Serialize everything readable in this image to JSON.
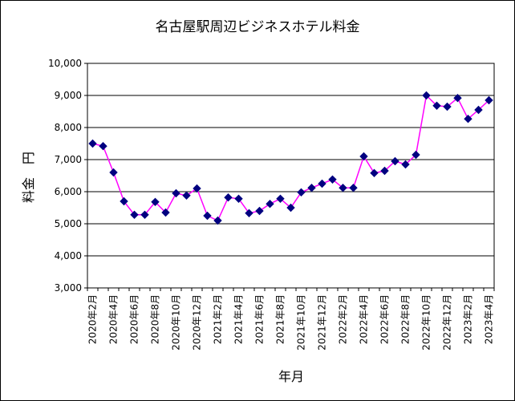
{
  "chart_data": {
    "type": "line",
    "title": "名古屋駅周辺ビジネスホテル料金",
    "xlabel": "年月",
    "ylabel": "料金　円",
    "ylim": [
      3000,
      10000
    ],
    "yticks": [
      "3,000",
      "4,000",
      "5,000",
      "6,000",
      "7,000",
      "8,000",
      "9,000",
      "10,000"
    ],
    "grid": true,
    "legend": "none",
    "x_tick_labels": [
      "2020年2月",
      "2020年4月",
      "2020年6月",
      "2020年8月",
      "2020年10月",
      "2020年12月",
      "2021年2月",
      "2021年4月",
      "2021年6月",
      "2021年8月",
      "2021年10月",
      "2021年12月",
      "2022年2月",
      "2022年4月",
      "2022年6月",
      "2022年8月",
      "2022年10月",
      "2022年12月",
      "2023年2月",
      "2023年4月"
    ],
    "x": [
      "2020年2月",
      "2020年3月",
      "2020年4月",
      "2020年5月",
      "2020年6月",
      "2020年7月",
      "2020年8月",
      "2020年9月",
      "2020年10月",
      "2020年11月",
      "2020年12月",
      "2021年1月",
      "2021年2月",
      "2021年3月",
      "2021年4月",
      "2021年5月",
      "2021年6月",
      "2021年7月",
      "2021年8月",
      "2021年9月",
      "2021年10月",
      "2021年11月",
      "2021年12月",
      "2022年1月",
      "2022年2月",
      "2022年3月",
      "2022年4月",
      "2022年5月",
      "2022年6月",
      "2022年7月",
      "2022年8月",
      "2022年9月",
      "2022年10月",
      "2022年11月",
      "2022年12月",
      "2023年1月",
      "2023年2月",
      "2023年3月",
      "2023年4月"
    ],
    "series": [
      {
        "values": [
          7500,
          7420,
          6600,
          5700,
          5280,
          5280,
          5680,
          5350,
          5950,
          5880,
          6100,
          5250,
          5100,
          5820,
          5780,
          5330,
          5400,
          5620,
          5780,
          5500,
          5980,
          6120,
          6250,
          6380,
          6120,
          6120,
          7100,
          6580,
          6650,
          6950,
          6850,
          7150,
          9000,
          8680,
          8650,
          8920,
          8270,
          8550,
          8850
        ]
      }
    ],
    "colors": {
      "line": "#ff00ff",
      "marker": "#000080",
      "grid": "#000000"
    }
  }
}
